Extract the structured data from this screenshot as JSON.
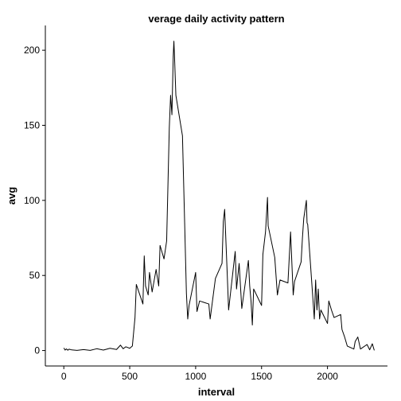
{
  "chart_data": {
    "type": "line",
    "title": "verage daily activity pattern",
    "xlabel": "interval",
    "ylabel": "avg",
    "xlim": [
      -140,
      2455
    ],
    "ylim": [
      -10.3,
      216.5
    ],
    "xticks": [
      0,
      500,
      1000,
      1500,
      2000
    ],
    "yticks": [
      0,
      50,
      100,
      150,
      200
    ],
    "grid": false,
    "legend": "none",
    "series": [
      {
        "color": "#000000",
        "x": [
          0,
          10,
          20,
          30,
          40,
          60,
          100,
          150,
          200,
          250,
          300,
          350,
          400,
          430,
          450,
          470,
          500,
          520,
          540,
          550,
          600,
          610,
          620,
          640,
          650,
          670,
          700,
          720,
          730,
          760,
          780,
          800,
          810,
          820,
          830,
          835,
          840,
          850,
          900,
          930,
          940,
          950,
          1000,
          1010,
          1030,
          1100,
          1110,
          1150,
          1200,
          1210,
          1220,
          1240,
          1250,
          1300,
          1310,
          1330,
          1350,
          1400,
          1410,
          1420,
          1430,
          1440,
          1500,
          1510,
          1530,
          1545,
          1550,
          1600,
          1620,
          1640,
          1700,
          1720,
          1740,
          1750,
          1800,
          1810,
          1820,
          1840,
          1845,
          1850,
          1900,
          1910,
          1920,
          1930,
          1940,
          1950,
          2000,
          2010,
          2030,
          2050,
          2100,
          2110,
          2130,
          2150,
          2200,
          2210,
          2230,
          2250,
          2300,
          2320,
          2340,
          2355
        ],
        "y": [
          1.7,
          0.3,
          1.1,
          0.2,
          0.9,
          0.4,
          0.1,
          0.6,
          0.1,
          1.2,
          0.3,
          1.5,
          0.7,
          3.6,
          1.2,
          2.5,
          1.5,
          3.0,
          22.0,
          44.0,
          31.0,
          63.0,
          43.0,
          37.0,
          52.0,
          39.0,
          54.0,
          43.0,
          70.0,
          61.0,
          73.0,
          148.0,
          170.0,
          157.0,
          196.0,
          206.0,
          195.0,
          170.0,
          143.0,
          38.0,
          21.0,
          30.0,
          52.0,
          26.0,
          33.0,
          31.0,
          21.0,
          48.0,
          58.0,
          86.0,
          94.0,
          50.0,
          27.0,
          66.0,
          41.0,
          58.0,
          28.0,
          60.0,
          43.0,
          33.0,
          17.0,
          41.0,
          30.0,
          64.0,
          79.0,
          102.0,
          83.0,
          62.0,
          37.0,
          47.0,
          45.0,
          79.0,
          37.0,
          46.0,
          59.0,
          75.0,
          88.0,
          100.0,
          85.0,
          84.0,
          21.0,
          47.0,
          27.0,
          41.0,
          21.0,
          27.0,
          18.0,
          33.0,
          27.0,
          22.0,
          24.0,
          14.0,
          9.0,
          3.0,
          1.0,
          6.0,
          9.0,
          1.0,
          4.0,
          0.5,
          4.5,
          0.1
        ]
      }
    ]
  }
}
